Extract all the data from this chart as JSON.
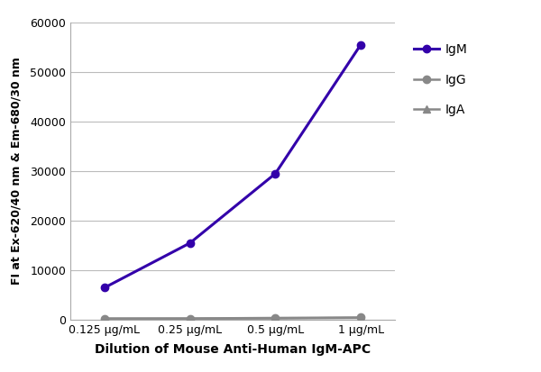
{
  "x_labels": [
    "0.125 μg/mL",
    "0.25 μg/mL",
    "0.5 μg/mL",
    "1 μg/mL"
  ],
  "x_values": [
    1,
    2,
    3,
    4
  ],
  "IgM_values": [
    6500,
    15500,
    29500,
    55500
  ],
  "IgG_values": [
    300,
    300,
    400,
    500
  ],
  "IgA_values": [
    200,
    250,
    300,
    400
  ],
  "IgM_color": "#3300AA",
  "IgG_color": "#888888",
  "IgA_color": "#888888",
  "xlabel": "Dilution of Mouse Anti-Human IgM-APC",
  "ylabel": "FI at Ex-620/40 nm & Em-680/30 nm",
  "ylim": [
    0,
    60000
  ],
  "yticks": [
    0,
    10000,
    20000,
    30000,
    40000,
    50000,
    60000
  ],
  "background_color": "#ffffff",
  "grid_color": "#bbbbbb",
  "legend_labels": [
    "IgM",
    "IgG",
    "IgA"
  ]
}
